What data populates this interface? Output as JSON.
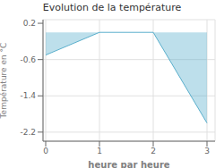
{
  "chart_data": {
    "type": "area",
    "title": "Evolution de la température",
    "xlabel": "heure par heure",
    "ylabel": "Température en °C",
    "x": [
      0,
      1,
      2,
      3
    ],
    "values": [
      -0.5,
      0.0,
      0.0,
      -2.0
    ],
    "color": "#5aafcc",
    "xlim": [
      -0.05,
      3.15
    ],
    "ylim": [
      -2.4,
      0.28
    ],
    "xticks": [
      0,
      1,
      2,
      3
    ],
    "yticks": [
      0.2,
      -0.6,
      -1.4,
      -2.2
    ],
    "grid": true
  }
}
